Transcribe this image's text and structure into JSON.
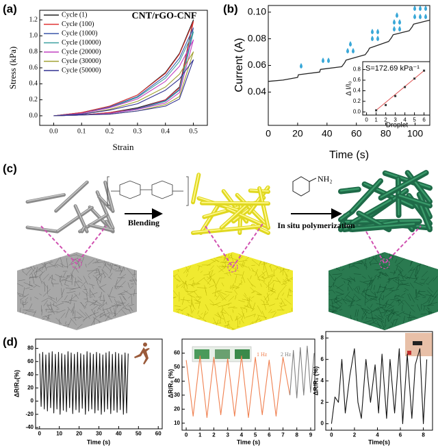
{
  "panel_labels": [
    "(a)",
    "(b)",
    "(c)",
    "(d)"
  ],
  "diagram": {
    "step1": "Blending",
    "step2": "In situ polymerization",
    "amine": "NH₂"
  },
  "chart_data": [
    {
      "type": "line",
      "annotation": "CNT/rGO-CNF",
      "xlabel": "Strain",
      "ylabel": "Stress (kPa)",
      "xlim": [
        -0.05,
        0.55
      ],
      "ylim": [
        -0.12,
        1.32
      ],
      "xticks": [
        {
          "value": 0,
          "label": "0.0"
        },
        0.1,
        0.2,
        0.3,
        0.4,
        0.5
      ],
      "yticks": [
        {
          "value": 0,
          "label": "0.0"
        },
        0.2,
        0.4,
        0.6,
        0.8,
        {
          "value": 1,
          "label": "1.0"
        },
        1.2
      ],
      "legend": "upper left",
      "x": [
        0,
        0.1,
        0.2,
        0.3,
        0.4,
        0.45,
        0.5,
        0.45,
        0.4,
        0.3,
        0.2,
        0.1,
        0
      ],
      "series": [
        {
          "name": "Cycle (1)",
          "color": "#222222",
          "values": [
            0,
            0.04,
            0.12,
            0.26,
            0.54,
            0.78,
            1.2,
            0.36,
            0.2,
            0.1,
            0.04,
            0.01,
            0
          ]
        },
        {
          "name": "Cycle (100)",
          "color": "#e03030",
          "values": [
            0,
            0.04,
            0.12,
            0.26,
            0.53,
            0.77,
            1.18,
            0.35,
            0.2,
            0.09,
            0.04,
            0.01,
            0
          ]
        },
        {
          "name": "Cycle (1000)",
          "color": "#3a56a8",
          "values": [
            0,
            0.03,
            0.11,
            0.24,
            0.5,
            0.72,
            1.1,
            0.33,
            0.19,
            0.09,
            0.03,
            0.01,
            0
          ]
        },
        {
          "name": "Cycle (10000)",
          "color": "#3aa0a0",
          "values": [
            0,
            0.03,
            0.1,
            0.23,
            0.47,
            0.68,
            1.05,
            0.32,
            0.18,
            0.08,
            0.03,
            0.01,
            0
          ]
        },
        {
          "name": "Cycle (20000)",
          "color": "#c040c0",
          "values": [
            0,
            0.03,
            0.1,
            0.21,
            0.43,
            0.62,
            0.95,
            0.29,
            0.16,
            0.08,
            0.03,
            0.01,
            0
          ]
        },
        {
          "name": "Cycle (30000)",
          "color": "#a0a030",
          "values": [
            0,
            0.02,
            0.08,
            0.18,
            0.36,
            0.52,
            0.8,
            0.24,
            0.14,
            0.06,
            0.02,
            0.01,
            0
          ]
        },
        {
          "name": "Cycle (50000)",
          "color": "#303090",
          "values": [
            0,
            0.02,
            0.07,
            0.15,
            0.32,
            0.46,
            0.7,
            0.21,
            0.12,
            0.06,
            0.02,
            0.01,
            0
          ]
        }
      ]
    },
    {
      "type": "line",
      "xlabel": "Time (s)",
      "ylabel": "Current (A)",
      "xlim": [
        0,
        110
      ],
      "ylim": [
        0.015,
        0.105
      ],
      "xticks": [
        0,
        20,
        40,
        60,
        80,
        100
      ],
      "yticks": [
        0.04,
        0.06,
        0.08,
        {
          "value": 0.1,
          "label": "0.10"
        }
      ],
      "series": [
        {
          "color": "#222222",
          "x": [
            0,
            10,
            20,
            20.5,
            35,
            35.5,
            50,
            52,
            53,
            66,
            68,
            69,
            82,
            84,
            85,
            96,
            98,
            99,
            110
          ],
          "values": [
            0.048,
            0.049,
            0.051,
            0.053,
            0.055,
            0.057,
            0.059,
            0.062,
            0.064,
            0.068,
            0.071,
            0.073,
            0.078,
            0.081,
            0.083,
            0.086,
            0.089,
            0.091,
            0.094
          ]
        }
      ]
    },
    {
      "type": "scatter",
      "xlabel": "Droplet",
      "ylabel": "Δ I/I₀",
      "annotation": "S=172.69 kPa⁻¹",
      "xlim": [
        -0.4,
        6.6
      ],
      "ylim": [
        -0.06,
        0.95
      ],
      "xticks": [
        0,
        1,
        2,
        3,
        4,
        5,
        6
      ],
      "yticks": [
        {
          "value": 0,
          "label": "0.0"
        },
        0.2,
        0.4,
        0.6,
        0.8
      ],
      "series": [
        {
          "color": "#e05050",
          "x": [
            1,
            2,
            3,
            4,
            5,
            6
          ],
          "values": [
            0.03,
            0.13,
            0.3,
            0.47,
            0.63,
            0.78
          ]
        }
      ]
    },
    {
      "type": "line",
      "xlabel": "Time (s)",
      "ylabel": "ΔR/R₀(%)",
      "xlim": [
        -2,
        62
      ],
      "ylim": [
        -42,
        94
      ],
      "xticks": [
        0,
        10,
        20,
        30,
        40,
        50,
        60
      ],
      "yticks": [
        -40,
        -20,
        0,
        20,
        40,
        60,
        80
      ],
      "series": [
        {
          "color": "#111111",
          "x": [
            0,
            0.8,
            1.6,
            2.4,
            3.2,
            4,
            4.8,
            5.6,
            6.4,
            7.2,
            8,
            8.8,
            9.6,
            10.4,
            11.2,
            12,
            12.8,
            13.6,
            14.4,
            15.2,
            16,
            16.8,
            17.6,
            18.4,
            19.2,
            20,
            20.8,
            21.6,
            22.4,
            23.2,
            24,
            24.8,
            25.6,
            26.4,
            27.2,
            28,
            28.8,
            29.6,
            30.4,
            31.2,
            32,
            32.8,
            33.6,
            34.4,
            35.2,
            36,
            36.8,
            37.6,
            38.4,
            39.2,
            40,
            40.8,
            41.6,
            42.4,
            43.2,
            44,
            44.8
          ],
          "values": [
            72,
            -8,
            74,
            -12,
            70,
            -15,
            73,
            -10,
            75,
            -18,
            71,
            -12,
            74,
            -20,
            72,
            -14,
            70,
            -16,
            75,
            -10,
            73,
            -19,
            71,
            -13,
            74,
            -17,
            72,
            -11,
            70,
            -20,
            75,
            -15,
            73,
            -12,
            71,
            -18,
            74,
            -14,
            72,
            -20,
            70,
            -16,
            73,
            -12,
            75,
            -19,
            71,
            -14,
            74,
            -17,
            72,
            -13,
            70,
            -20,
            73,
            -18,
            72
          ]
        }
      ]
    },
    {
      "type": "line",
      "xlabel": "Time (s)",
      "ylabel": "ΔR/R₀ (%)",
      "xlim": [
        -0.3,
        9.3
      ],
      "ylim": [
        5,
        70
      ],
      "xticks": [
        0,
        1,
        2,
        3,
        4,
        5,
        6,
        7,
        8,
        9
      ],
      "yticks": [
        10,
        20,
        30,
        40,
        50,
        60
      ],
      "series": [
        {
          "name": "1 Hz",
          "color": "#f08050",
          "x": [
            0,
            0.5,
            1,
            1.5,
            2,
            2.5,
            3,
            3.5,
            4,
            4.5,
            5,
            5.5,
            6,
            6.5,
            7,
            7.5
          ],
          "values": [
            55,
            15,
            58,
            14,
            57,
            16,
            56,
            15,
            58,
            14,
            57,
            16,
            55,
            15,
            57,
            30
          ]
        },
        {
          "name": "2 Hz",
          "color": "#808080",
          "x": [
            7.5,
            7.75,
            8,
            8.25,
            8.5,
            8.75,
            9,
            9.25
          ],
          "values": [
            30,
            62,
            28,
            64,
            30,
            65,
            32,
            60
          ]
        }
      ]
    },
    {
      "type": "line",
      "xlabel": "Time(s)",
      "ylabel": "ΔR/R₀ (%)",
      "xlim": [
        -0.5,
        8.8
      ],
      "ylim": [
        -0.6,
        8.6
      ],
      "xticks": [
        0,
        2,
        4,
        6,
        8
      ],
      "yticks": [
        0,
        2,
        4,
        6,
        8
      ],
      "series": [
        {
          "color": "#111111",
          "x": [
            0,
            0.3,
            0.6,
            0.9,
            1.2,
            1.6,
            2,
            2.3,
            2.6,
            3,
            3.4,
            3.8,
            4.1,
            4.4,
            4.8,
            5.1,
            5.5,
            5.9,
            6.2,
            6.6,
            7,
            7.3,
            7.7,
            8,
            8.3
          ],
          "values": [
            0,
            2.5,
            2,
            6,
            1,
            4.5,
            7,
            2,
            0.5,
            6,
            2,
            5.5,
            1,
            6.5,
            0.5,
            6,
            1,
            7,
            0,
            6.5,
            0.5,
            5.5,
            7,
            0,
            6
          ]
        }
      ]
    }
  ]
}
